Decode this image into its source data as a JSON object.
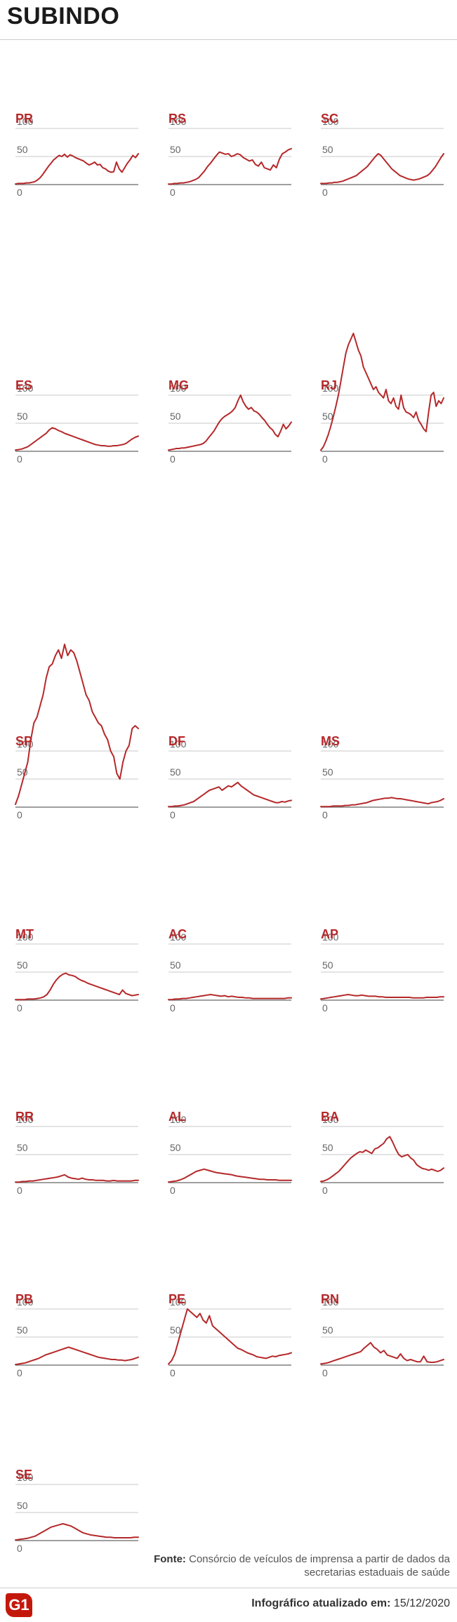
{
  "page": {
    "title": "SUBINDO",
    "source_label": "Fonte:",
    "source_text": "Consórcio de veículos de imprensa a partir de dados da secretarias estaduais de saúde",
    "updated_label": "Infográfico atualizado em:",
    "updated_date": "15/12/2020",
    "logo": "G1"
  },
  "colors": {
    "accent": "#b5282a",
    "title": "#1a1a1a",
    "grid": "#c8c8c8"
  },
  "chart_data": [
    {
      "type": "line",
      "label": "PR",
      "yticks": [
        0,
        50,
        100
      ],
      "y": [
        1,
        2,
        2,
        2,
        3,
        3,
        4,
        5,
        8,
        12,
        18,
        25,
        32,
        38,
        44,
        48,
        52,
        50,
        54,
        49,
        53,
        51,
        48,
        46,
        44,
        42,
        38,
        35,
        37,
        40,
        35,
        36,
        30,
        28,
        24,
        22,
        23,
        40,
        28,
        22,
        30,
        38,
        44,
        52,
        48,
        55
      ]
    },
    {
      "type": "line",
      "label": "RS",
      "yticks": [
        0,
        50,
        100
      ],
      "y": [
        1,
        1,
        2,
        2,
        3,
        3,
        4,
        5,
        7,
        9,
        12,
        18,
        24,
        32,
        38,
        45,
        52,
        58,
        56,
        54,
        55,
        50,
        52,
        55,
        53,
        48,
        45,
        42,
        44,
        36,
        33,
        40,
        30,
        28,
        26,
        35,
        30,
        45,
        55,
        58,
        62,
        64
      ]
    },
    {
      "type": "line",
      "label": "SC",
      "yticks": [
        0,
        50,
        100
      ],
      "y": [
        2,
        2,
        2,
        3,
        3,
        4,
        4,
        5,
        6,
        8,
        10,
        12,
        14,
        16,
        20,
        24,
        28,
        32,
        38,
        44,
        50,
        55,
        52,
        46,
        40,
        34,
        28,
        24,
        20,
        16,
        14,
        12,
        10,
        9,
        8,
        9,
        10,
        12,
        14,
        16,
        20,
        26,
        32,
        40,
        48,
        55
      ]
    },
    {
      "type": "line",
      "label": "ES",
      "yticks": [
        0,
        50,
        100
      ],
      "y": [
        2,
        3,
        4,
        6,
        8,
        12,
        16,
        20,
        24,
        28,
        32,
        38,
        42,
        40,
        37,
        35,
        32,
        30,
        28,
        26,
        24,
        22,
        20,
        18,
        16,
        14,
        12,
        11,
        10,
        10,
        9,
        9,
        10,
        10,
        11,
        12,
        14,
        18,
        22,
        25,
        27
      ]
    },
    {
      "type": "line",
      "label": "MG",
      "yticks": [
        0,
        50,
        100
      ],
      "y": [
        2,
        3,
        4,
        5,
        5,
        6,
        6,
        7,
        8,
        9,
        10,
        11,
        12,
        14,
        18,
        24,
        30,
        36,
        44,
        52,
        58,
        62,
        65,
        68,
        72,
        78,
        90,
        100,
        88,
        80,
        75,
        78,
        72,
        70,
        66,
        60,
        55,
        48,
        42,
        38,
        30,
        26,
        36,
        48,
        40,
        45,
        52
      ]
    },
    {
      "type": "line",
      "label": "RJ",
      "yticks": [
        0,
        50,
        100
      ],
      "y": [
        2,
        8,
        18,
        30,
        45,
        62,
        80,
        100,
        125,
        150,
        175,
        190,
        200,
        210,
        195,
        180,
        170,
        150,
        140,
        130,
        120,
        110,
        115,
        105,
        100,
        95,
        110,
        90,
        85,
        95,
        80,
        75,
        100,
        78,
        70,
        68,
        65,
        60,
        70,
        55,
        48,
        40,
        35,
        70,
        100,
        105,
        80,
        90,
        85,
        95
      ]
    },
    {
      "type": "line",
      "label": "SP",
      "yticks": [
        0,
        50,
        100
      ],
      "y": [
        5,
        20,
        40,
        60,
        80,
        120,
        150,
        160,
        180,
        200,
        230,
        250,
        255,
        270,
        280,
        265,
        290,
        270,
        280,
        275,
        260,
        240,
        220,
        200,
        190,
        170,
        160,
        150,
        145,
        130,
        120,
        100,
        90,
        60,
        50,
        80,
        100,
        110,
        140,
        145,
        140
      ]
    },
    {
      "type": "line",
      "label": "DF",
      "yticks": [
        0,
        50,
        100
      ],
      "y": [
        1,
        1,
        2,
        2,
        3,
        4,
        6,
        8,
        10,
        14,
        18,
        22,
        26,
        30,
        32,
        34,
        36,
        30,
        34,
        38,
        36,
        40,
        44,
        38,
        34,
        30,
        26,
        22,
        20,
        18,
        16,
        14,
        12,
        10,
        8,
        8,
        10,
        9,
        11,
        12
      ]
    },
    {
      "type": "line",
      "label": "MS",
      "yticks": [
        0,
        50,
        100
      ],
      "y": [
        1,
        1,
        1,
        1,
        2,
        2,
        2,
        2,
        3,
        3,
        4,
        4,
        5,
        6,
        7,
        8,
        10,
        12,
        13,
        14,
        15,
        16,
        16,
        17,
        16,
        15,
        15,
        14,
        13,
        12,
        11,
        10,
        9,
        8,
        7,
        6,
        8,
        9,
        10,
        12,
        15
      ]
    },
    {
      "type": "line",
      "label": "MT",
      "yticks": [
        0,
        50,
        100
      ],
      "y": [
        1,
        1,
        1,
        1,
        2,
        2,
        2,
        3,
        4,
        6,
        10,
        18,
        28,
        36,
        42,
        46,
        48,
        45,
        44,
        42,
        38,
        35,
        33,
        30,
        28,
        26,
        24,
        22,
        20,
        18,
        16,
        14,
        12,
        10,
        18,
        12,
        10,
        8,
        9,
        10
      ]
    },
    {
      "type": "line",
      "label": "AC",
      "yticks": [
        0,
        50,
        100
      ],
      "y": [
        1,
        1,
        2,
        2,
        3,
        3,
        4,
        5,
        6,
        7,
        8,
        9,
        10,
        9,
        8,
        7,
        8,
        6,
        7,
        6,
        5,
        5,
        4,
        4,
        3,
        3,
        3,
        3,
        3,
        3,
        3,
        3,
        3,
        3,
        4,
        4
      ]
    },
    {
      "type": "line",
      "label": "AP",
      "yticks": [
        0,
        50,
        100
      ],
      "y": [
        2,
        3,
        4,
        5,
        6,
        7,
        8,
        9,
        10,
        9,
        8,
        8,
        9,
        8,
        7,
        7,
        7,
        6,
        6,
        5,
        5,
        5,
        5,
        5,
        5,
        5,
        5,
        4,
        4,
        4,
        4,
        5,
        5,
        5,
        5,
        6,
        6
      ]
    },
    {
      "type": "line",
      "label": "RR",
      "yticks": [
        0,
        50,
        100
      ],
      "y": [
        1,
        1,
        2,
        2,
        3,
        3,
        4,
        5,
        6,
        7,
        8,
        9,
        10,
        12,
        14,
        10,
        8,
        7,
        6,
        8,
        6,
        5,
        5,
        4,
        4,
        4,
        3,
        3,
        4,
        3,
        3,
        3,
        3,
        3,
        4,
        4
      ]
    },
    {
      "type": "line",
      "label": "AL",
      "yticks": [
        0,
        50,
        100
      ],
      "y": [
        1,
        2,
        3,
        5,
        8,
        12,
        16,
        20,
        22,
        24,
        22,
        20,
        18,
        17,
        16,
        15,
        14,
        12,
        11,
        10,
        9,
        8,
        7,
        6,
        6,
        5,
        5,
        5,
        4,
        4,
        4,
        4
      ]
    },
    {
      "type": "line",
      "label": "BA",
      "yticks": [
        0,
        50,
        100
      ],
      "y": [
        2,
        3,
        5,
        8,
        12,
        16,
        20,
        26,
        32,
        38,
        44,
        48,
        52,
        55,
        54,
        58,
        55,
        52,
        60,
        62,
        66,
        70,
        78,
        82,
        72,
        60,
        50,
        46,
        48,
        50,
        44,
        40,
        32,
        28,
        25,
        24,
        22,
        24,
        22,
        20,
        22,
        26
      ]
    },
    {
      "type": "line",
      "label": "PB",
      "yticks": [
        0,
        50,
        100
      ],
      "y": [
        1,
        2,
        3,
        4,
        6,
        8,
        10,
        12,
        15,
        18,
        20,
        22,
        24,
        26,
        28,
        30,
        32,
        30,
        28,
        26,
        24,
        22,
        20,
        18,
        16,
        14,
        13,
        12,
        11,
        10,
        10,
        9,
        9,
        8,
        9,
        10,
        12,
        14
      ]
    },
    {
      "type": "line",
      "label": "PE",
      "yticks": [
        0,
        50,
        100
      ],
      "y": [
        2,
        8,
        20,
        40,
        60,
        80,
        100,
        95,
        90,
        85,
        92,
        80,
        75,
        88,
        70,
        65,
        60,
        55,
        50,
        45,
        40,
        35,
        30,
        28,
        25,
        22,
        20,
        18,
        15,
        14,
        13,
        12,
        14,
        16,
        15,
        17,
        18,
        19,
        20,
        22
      ]
    },
    {
      "type": "line",
      "label": "RN",
      "yticks": [
        0,
        50,
        100
      ],
      "y": [
        2,
        3,
        4,
        6,
        8,
        10,
        12,
        14,
        16,
        18,
        20,
        22,
        24,
        30,
        35,
        40,
        32,
        28,
        22,
        26,
        18,
        16,
        14,
        12,
        20,
        12,
        8,
        10,
        8,
        6,
        6,
        16,
        6,
        5,
        5,
        6,
        8,
        10
      ]
    },
    {
      "type": "line",
      "label": "SE",
      "yticks": [
        0,
        50,
        100
      ],
      "y": [
        1,
        2,
        3,
        4,
        6,
        8,
        12,
        16,
        20,
        24,
        26,
        28,
        30,
        28,
        26,
        22,
        18,
        14,
        12,
        10,
        9,
        8,
        7,
        6,
        6,
        5,
        5,
        5,
        5,
        5,
        6,
        6
      ]
    }
  ]
}
